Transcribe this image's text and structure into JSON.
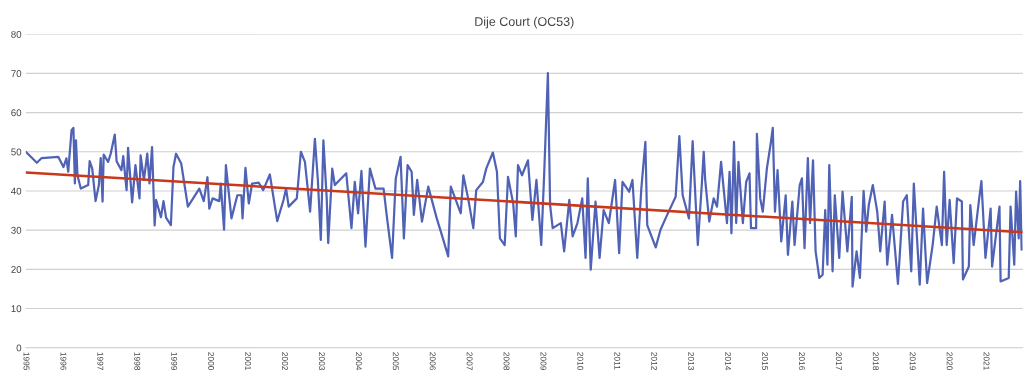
{
  "chart_data": {
    "type": "line",
    "title": "Dije Court (OC53)",
    "xlim": [
      1995,
      2022
    ],
    "xticks": [
      1995,
      1996,
      1997,
      1998,
      1999,
      2000,
      2001,
      2002,
      2003,
      2004,
      2005,
      2006,
      2007,
      2008,
      2009,
      2010,
      2011,
      2012,
      2013,
      2014,
      2015,
      2016,
      2017,
      2018,
      2019,
      2020,
      2021
    ],
    "ylim": [
      0,
      80
    ],
    "yticks": [
      0,
      10,
      20,
      30,
      40,
      50,
      60,
      70,
      80
    ],
    "grid": "y",
    "marker": "none",
    "line_style": "solid",
    "series": [
      {
        "color": "#4f62b5",
        "x": [
          1995.0,
          1995.3,
          1995.43,
          1995.88,
          1996.02,
          1996.1,
          1996.15,
          1996.24,
          1996.29,
          1996.33,
          1996.36,
          1996.4,
          1996.49,
          1996.69,
          1996.73,
          1996.8,
          1996.89,
          1996.98,
          1997.03,
          1997.08,
          1997.11,
          1997.23,
          1997.3,
          1997.41,
          1997.46,
          1997.59,
          1997.64,
          1997.73,
          1997.77,
          1997.88,
          1997.97,
          1998.08,
          1998.11,
          1998.2,
          1998.29,
          1998.35,
          1998.42,
          1998.49,
          1998.53,
          1998.66,
          1998.73,
          1998.8,
          1998.93,
          1999.0,
          1999.07,
          1999.21,
          1999.39,
          1999.7,
          1999.82,
          1999.92,
          1999.97,
          2000.06,
          2000.24,
          2000.28,
          2000.37,
          2000.42,
          2000.57,
          2000.73,
          2000.84,
          2000.87,
          2000.95,
          2001.04,
          2001.13,
          2001.31,
          2001.43,
          2001.61,
          2001.81,
          2001.98,
          2002.05,
          2002.12,
          2002.34,
          2002.45,
          2002.56,
          2002.7,
          2002.83,
          2002.91,
          2002.99,
          2003.06,
          2003.15,
          2003.19,
          2003.3,
          2003.37,
          2003.68,
          2003.82,
          2003.91,
          2004.0,
          2004.09,
          2004.2,
          2004.32,
          2004.47,
          2004.69,
          2004.78,
          2004.92,
          2005.02,
          2005.15,
          2005.24,
          2005.34,
          2005.45,
          2005.51,
          2005.6,
          2005.73,
          2005.9,
          2006.13,
          2006.28,
          2006.44,
          2006.51,
          2006.63,
          2006.78,
          2006.85,
          2006.98,
          2007.12,
          2007.2,
          2007.38,
          2007.47,
          2007.65,
          2007.76,
          2007.84,
          2007.97,
          2008.06,
          2008.2,
          2008.27,
          2008.33,
          2008.44,
          2008.6,
          2008.72,
          2008.83,
          2008.96,
          2009.04,
          2009.14,
          2009.2,
          2009.27,
          2009.49,
          2009.58,
          2009.72,
          2009.81,
          2009.94,
          2010.07,
          2010.16,
          2010.22,
          2010.3,
          2010.43,
          2010.54,
          2010.65,
          2010.79,
          2010.96,
          2011.07,
          2011.16,
          2011.34,
          2011.43,
          2011.56,
          2011.67,
          2011.78,
          2011.83,
          2012.06,
          2012.19,
          2012.37,
          2012.6,
          2012.7,
          2012.79,
          2012.96,
          2013.06,
          2013.2,
          2013.31,
          2013.36,
          2013.4,
          2013.51,
          2013.63,
          2013.72,
          2013.83,
          2013.99,
          2014.06,
          2014.11,
          2014.18,
          2014.24,
          2014.3,
          2014.42,
          2014.51,
          2014.6,
          2014.64,
          2014.78,
          2014.8,
          2014.89,
          2014.96,
          2015.07,
          2015.18,
          2015.23,
          2015.29,
          2015.36,
          2015.46,
          2015.58,
          2015.64,
          2015.76,
          2015.82,
          2015.96,
          2016.02,
          2016.09,
          2016.18,
          2016.24,
          2016.32,
          2016.39,
          2016.49,
          2016.58,
          2016.65,
          2016.71,
          2016.76,
          2016.85,
          2016.91,
          2017.03,
          2017.12,
          2017.25,
          2017.37,
          2017.39,
          2017.5,
          2017.59,
          2017.69,
          2017.76,
          2017.83,
          2017.94,
          2018.06,
          2018.14,
          2018.26,
          2018.33,
          2018.46,
          2018.62,
          2018.76,
          2018.86,
          2018.98,
          2019.05,
          2019.21,
          2019.3,
          2019.41,
          2019.56,
          2019.67,
          2019.81,
          2019.87,
          2019.94,
          2020.02,
          2020.13,
          2020.22,
          2020.35,
          2020.38,
          2020.54,
          2020.58,
          2020.67,
          2020.81,
          2020.88,
          2020.99,
          2021.13,
          2021.17,
          2021.37,
          2021.4,
          2021.62,
          2021.67,
          2021.77,
          2021.82,
          2021.89,
          2021.93,
          2021.97
        ],
        "values": [
          50.0,
          47.2,
          48.4,
          48.7,
          46.1,
          48.3,
          44.9,
          55.5,
          56.1,
          41.9,
          52.9,
          44.0,
          40.6,
          41.5,
          47.6,
          45.7,
          37.4,
          41.5,
          48.4,
          37.3,
          49.3,
          47.4,
          49.5,
          54.4,
          47.6,
          45.3,
          48.9,
          40.2,
          51.0,
          37.1,
          46.6,
          38.1,
          49.1,
          42.8,
          49.5,
          41.9,
          51.2,
          31.2,
          37.7,
          33.3,
          37.4,
          33.2,
          31.3,
          46.1,
          49.5,
          47.0,
          36.0,
          40.6,
          37.4,
          43.5,
          35.5,
          38.1,
          37.4,
          41.9,
          30.1,
          46.6,
          33.0,
          38.9,
          38.9,
          33.0,
          45.9,
          36.8,
          41.9,
          42.1,
          40.2,
          44.2,
          32.3,
          37.7,
          40.6,
          36.0,
          38.1,
          50.0,
          47.4,
          34.7,
          53.3,
          42.8,
          27.5,
          52.9,
          38.1,
          26.7,
          45.7,
          41.5,
          44.5,
          30.5,
          42.3,
          34.3,
          45.1,
          25.8,
          45.7,
          40.6,
          40.6,
          33.4,
          22.9,
          43.2,
          48.7,
          27.9,
          46.6,
          44.9,
          33.9,
          42.8,
          32.2,
          41.1,
          33.0,
          28.4,
          23.3,
          41.1,
          38.1,
          34.3,
          44.0,
          38.1,
          30.5,
          40.2,
          42.3,
          45.7,
          49.8,
          44.9,
          27.9,
          26.2,
          43.6,
          36.8,
          28.4,
          46.6,
          44.0,
          47.8,
          32.6,
          42.8,
          26.2,
          44.5,
          70.1,
          36.4,
          30.5,
          31.8,
          24.6,
          37.7,
          28.4,
          31.8,
          38.1,
          22.9,
          43.2,
          19.9,
          37.3,
          22.9,
          35.1,
          31.8,
          42.8,
          24.1,
          42.3,
          39.8,
          42.8,
          22.9,
          40.6,
          52.5,
          31.3,
          25.6,
          30.1,
          33.9,
          38.5,
          54.0,
          38.9,
          33.0,
          52.7,
          26.2,
          41.9,
          50.0,
          42.8,
          32.2,
          38.1,
          36.0,
          47.4,
          31.8,
          44.9,
          29.2,
          52.5,
          31.8,
          47.4,
          31.8,
          42.3,
          44.5,
          30.5,
          30.5,
          54.6,
          38.1,
          34.7,
          45.7,
          52.5,
          56.1,
          34.7,
          45.3,
          27.1,
          38.9,
          23.7,
          37.3,
          26.2,
          41.5,
          43.2,
          25.4,
          48.4,
          31.8,
          47.8,
          24.6,
          17.8,
          18.6,
          35.1,
          21.2,
          46.6,
          19.5,
          38.9,
          22.9,
          39.8,
          24.6,
          38.5,
          15.6,
          24.6,
          17.8,
          40.0,
          29.6,
          36.4,
          41.5,
          34.7,
          24.6,
          37.3,
          21.2,
          33.9,
          16.3,
          37.3,
          38.9,
          19.5,
          41.9,
          16.1,
          35.5,
          16.5,
          26.2,
          36.0,
          26.2,
          44.9,
          26.2,
          37.7,
          21.6,
          38.1,
          37.3,
          17.4,
          20.7,
          36.4,
          26.2,
          37.3,
          42.5,
          22.9,
          35.5,
          20.7,
          36.0,
          16.9,
          17.8,
          36.0,
          21.2,
          39.8,
          27.9,
          42.5,
          25.0
        ]
      },
      {
        "color": "#c9381a",
        "x": [
          1995.0,
          2021.97
        ],
        "values": [
          44.7,
          29.5
        ]
      }
    ]
  }
}
